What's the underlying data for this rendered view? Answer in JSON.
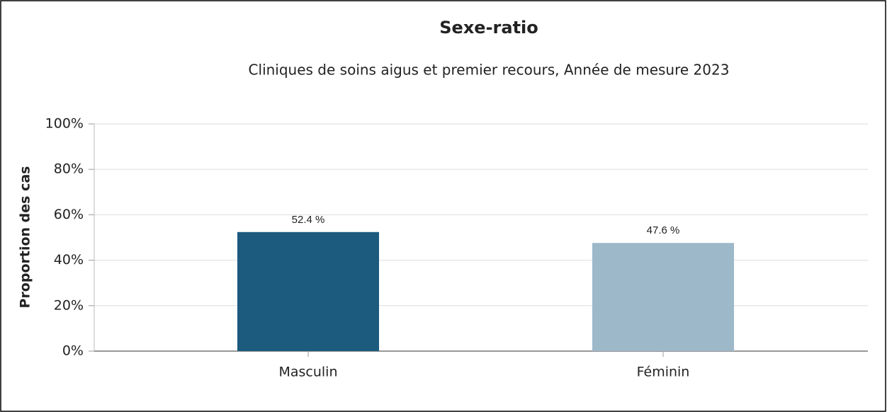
{
  "chart_data": {
    "type": "bar",
    "title": "Sexe-ratio",
    "subtitle": "Cliniques de soins aigus et premier recours, Année de mesure 2023",
    "y_label": "Proportion des cas",
    "categories": [
      "Masculin",
      "Féminin"
    ],
    "values": [
      52.4,
      47.6
    ],
    "value_labels": [
      "52.4 %",
      "47.6 %"
    ],
    "colors": [
      "#1c5b7e",
      "#9cb8c9"
    ],
    "ylim": [
      0,
      100
    ],
    "yticks": [
      {
        "value": 0,
        "label": "0%"
      },
      {
        "value": 20,
        "label": "20%"
      },
      {
        "value": 40,
        "label": "40%"
      },
      {
        "value": 60,
        "label": "60%"
      },
      {
        "value": 80,
        "label": "80%"
      },
      {
        "value": 100,
        "label": "100%"
      }
    ],
    "grid": true
  }
}
